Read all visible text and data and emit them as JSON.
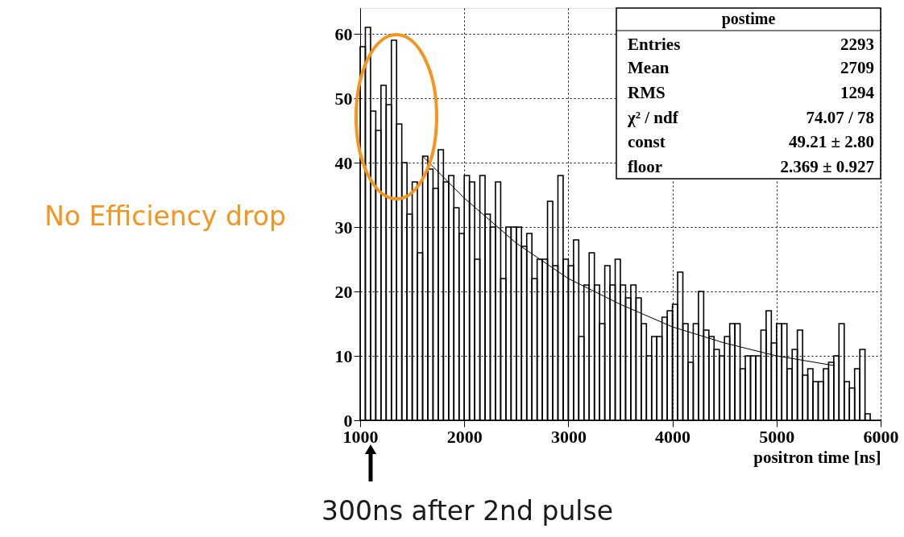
{
  "chart_data": {
    "type": "histogram",
    "xlabel": "positron time [ns]",
    "bins": [
      1000,
      1050,
      1100,
      1150,
      1200,
      1250,
      1300,
      1350,
      1400,
      1450,
      1500,
      1550,
      1600,
      1650,
      1700,
      1750,
      1800,
      1850,
      1900,
      1950,
      2000,
      2050,
      2100,
      2150,
      2200,
      2250,
      2300,
      2350,
      2400,
      2450,
      2500,
      2550,
      2600,
      2650,
      2700,
      2750,
      2800,
      2850,
      2900,
      2950,
      3000,
      3050,
      3100,
      3150,
      3200,
      3250,
      3300,
      3350,
      3400,
      3450,
      3500,
      3550,
      3600,
      3650,
      3700,
      3750,
      3800,
      3850,
      3900,
      3950,
      4000,
      4050,
      4100,
      4150,
      4200,
      4250,
      4300,
      4350,
      4400,
      4450,
      4500,
      4550,
      4600,
      4650,
      4700,
      4750,
      4800,
      4850,
      4900,
      4950,
      5000,
      5050,
      5100,
      5150,
      5200,
      5250,
      5300,
      5350,
      5400,
      5450,
      5500,
      5550,
      5600,
      5650,
      5700,
      5750,
      5800,
      5850,
      5900,
      5950,
      6000
    ],
    "series": [
      {
        "type": "histogram",
        "color": "#000000",
        "values": [
          58,
          61,
          48,
          45,
          52,
          49,
          59,
          46,
          40,
          32,
          37,
          26,
          41,
          39,
          36,
          42,
          37,
          38,
          33,
          29,
          38,
          37,
          25,
          38,
          32,
          30,
          37,
          22,
          30,
          30,
          30,
          27,
          29,
          22,
          25,
          25,
          34,
          24,
          38,
          25,
          24,
          28,
          13,
          21,
          26,
          21,
          15,
          24,
          21,
          25,
          21,
          19,
          21,
          19,
          15,
          10,
          13,
          13,
          16,
          17,
          18,
          23,
          15,
          9,
          15,
          20,
          14,
          13,
          11,
          10,
          13,
          15,
          15,
          8,
          10,
          10,
          10,
          14,
          17,
          12,
          15,
          15,
          8,
          11,
          14,
          7,
          8,
          6,
          6,
          8,
          9,
          10,
          15,
          6,
          5,
          8,
          11,
          1,
          0,
          0
        ]
      },
      {
        "type": "line",
        "color": "#000000",
        "x": [
          1600,
          2000,
          2500,
          3000,
          3500,
          4000,
          4500,
          5000,
          5550
        ],
        "values": [
          41,
          34.5,
          27.5,
          22,
          18,
          14.5,
          12,
          10,
          8.5
        ]
      }
    ],
    "xlim": [
      1000,
      6000
    ],
    "xticks": [
      1000,
      2000,
      3000,
      4000,
      5000,
      6000
    ],
    "ylim": [
      0,
      64
    ],
    "yticks": [
      0,
      10,
      20,
      30,
      40,
      50,
      60
    ],
    "grid": true,
    "annotations": [
      "postime",
      "Entries",
      "2293",
      "Mean",
      "2709",
      "RMS",
      "1294",
      "χ² / ndf",
      "74.07 / 78",
      "const",
      "49.21 ± 2.80",
      "floor",
      "2.369 ± 0.927",
      "No Efficiency drop",
      "300ns after 2nd pulse"
    ]
  }
}
